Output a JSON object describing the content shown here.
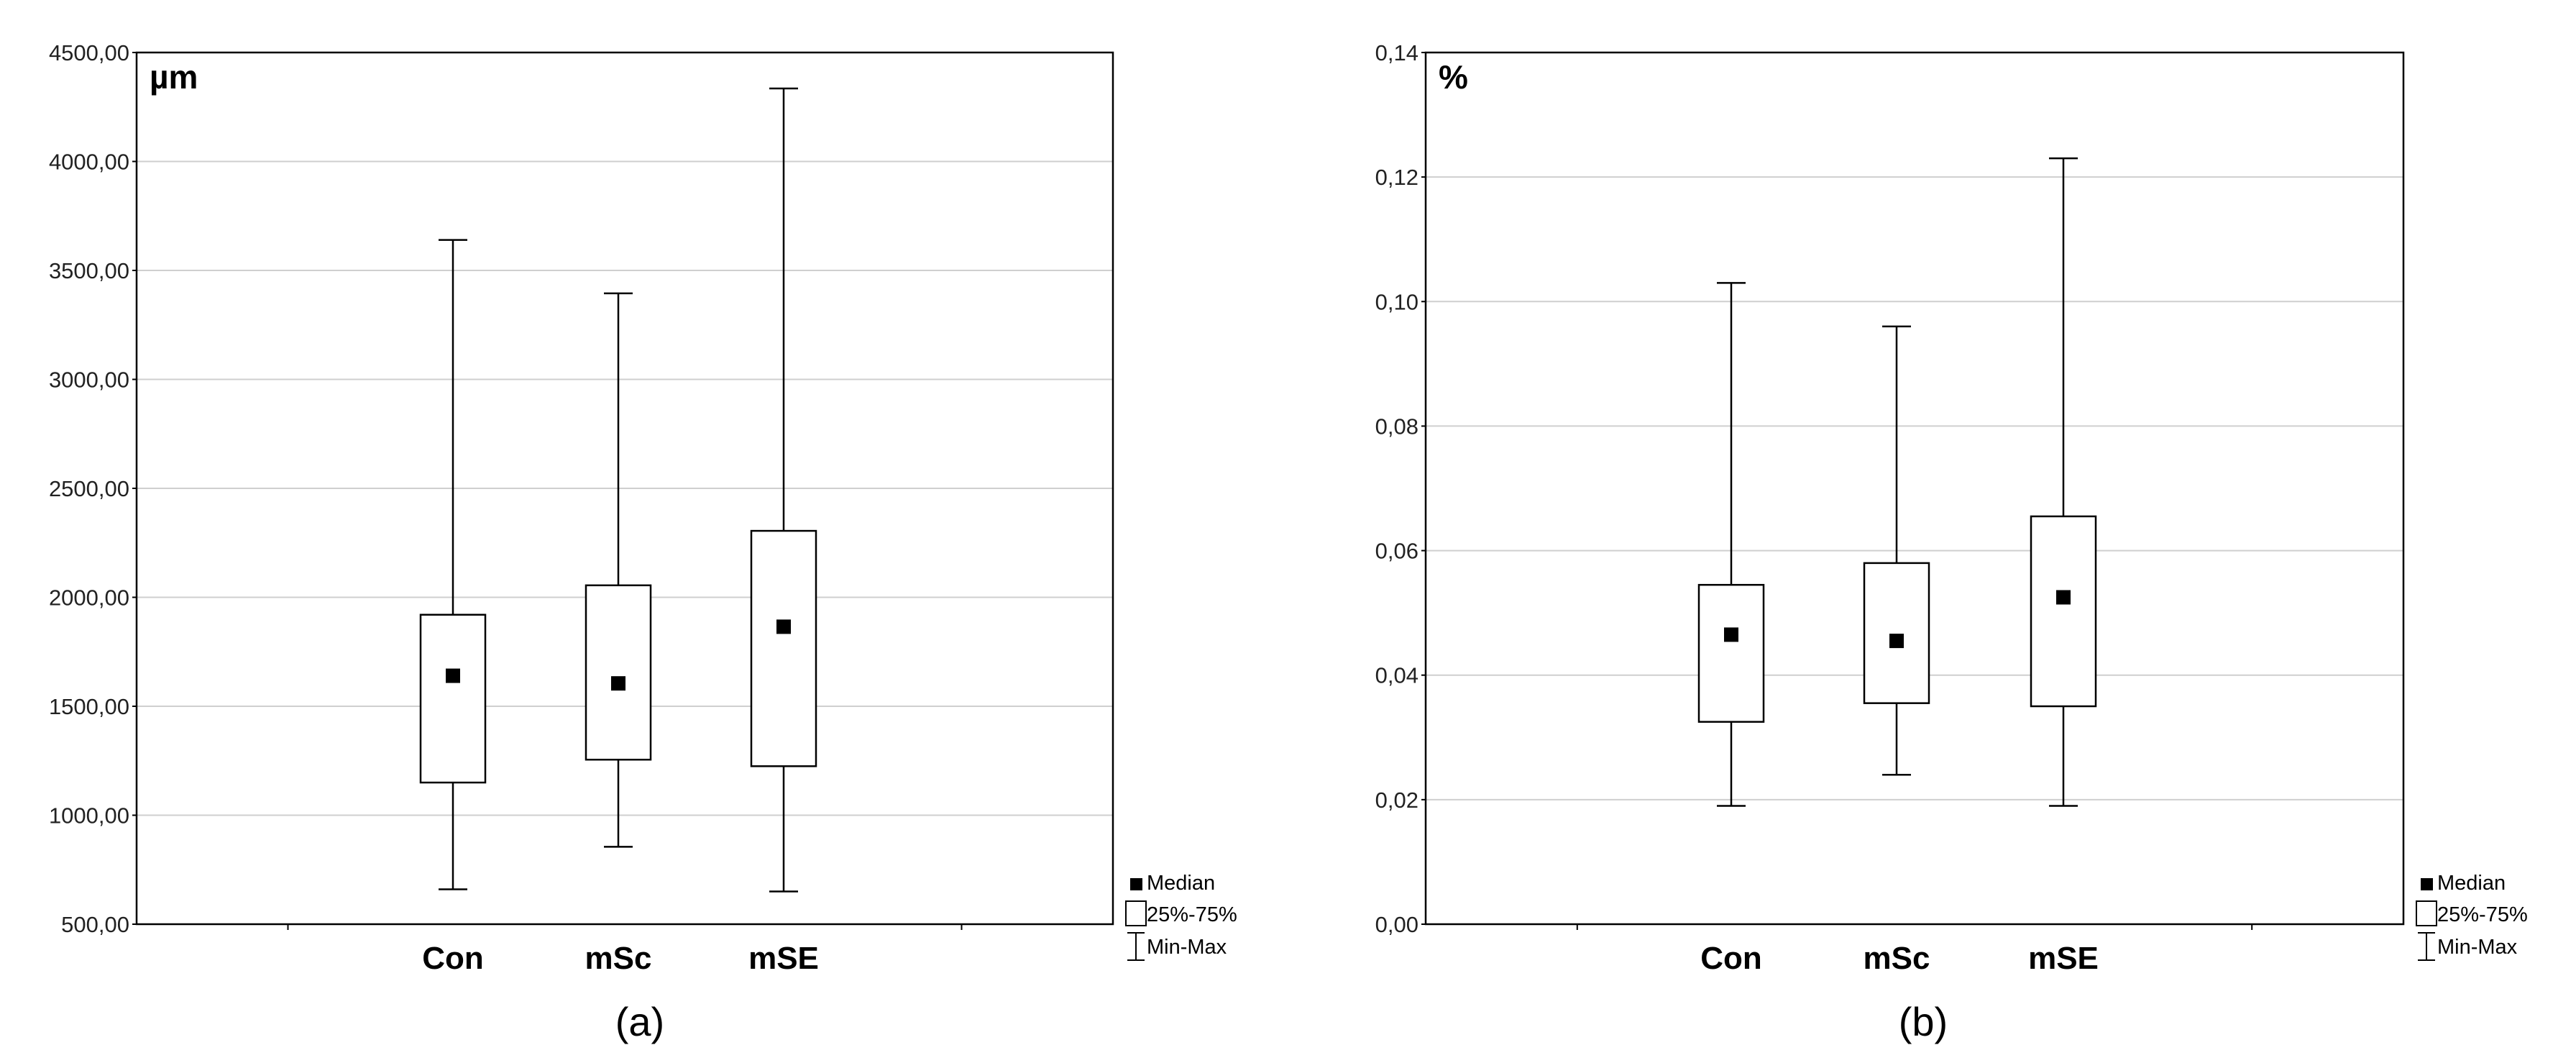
{
  "chart_data": [
    {
      "type": "boxplot",
      "panel_label": "(a)",
      "unit_label": "µm",
      "categories": [
        "Con",
        "mSc",
        "mSE"
      ],
      "yticks": [
        "4500,00",
        "4000,00",
        "3500,00",
        "3000,00",
        "2500,00",
        "2000,00",
        "1500,00",
        "1000,00",
        "500,00"
      ],
      "ylim": [
        500,
        4500
      ],
      "grid": true,
      "legend_position": "bottom-right, outside plot",
      "legend": [
        "Median",
        "25%-75%",
        "Min-Max"
      ],
      "boxes": [
        {
          "category": "Con",
          "min": 660,
          "q1": 1150,
          "median": 1640,
          "q3": 1920,
          "max": 3640
        },
        {
          "category": "mSc",
          "min": 855,
          "q1": 1255,
          "median": 1605,
          "q3": 2055,
          "max": 3395
        },
        {
          "category": "mSE",
          "min": 650,
          "q1": 1225,
          "median": 1865,
          "q3": 2305,
          "max": 4335
        }
      ]
    },
    {
      "type": "boxplot",
      "panel_label": "(b)",
      "unit_label": "%",
      "categories": [
        "Con",
        "mSc",
        "mSE"
      ],
      "yticks": [
        "0,14",
        "0,12",
        "0,10",
        "0,08",
        "0,06",
        "0,04",
        "0,02",
        "0,00"
      ],
      "ylim": [
        0,
        0.14
      ],
      "grid": true,
      "legend_position": "bottom-right, outside plot",
      "legend": [
        "Median",
        "25%-75%",
        "Min-Max"
      ],
      "boxes": [
        {
          "category": "Con",
          "min": 0.019,
          "q1": 0.0325,
          "median": 0.0465,
          "q3": 0.0545,
          "max": 0.103
        },
        {
          "category": "mSc",
          "min": 0.024,
          "q1": 0.0355,
          "median": 0.0455,
          "q3": 0.058,
          "max": 0.096
        },
        {
          "category": "mSE",
          "min": 0.019,
          "q1": 0.035,
          "median": 0.0525,
          "q3": 0.0655,
          "max": 0.123
        }
      ]
    }
  ]
}
